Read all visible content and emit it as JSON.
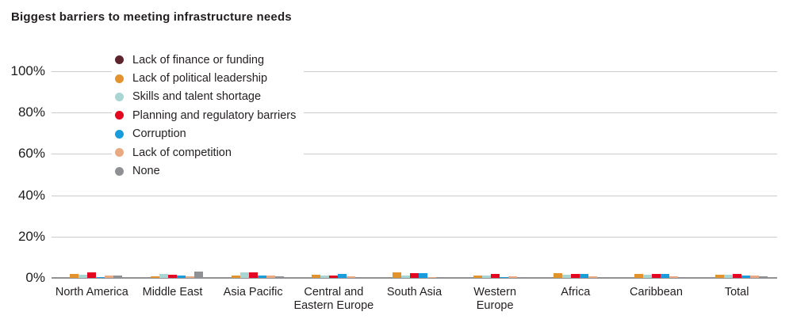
{
  "header": {
    "title": "Biggest barriers to meeting infrastructure needs"
  },
  "colors": {
    "lack_of_finance": "#5e242c",
    "political_leadership": "#e2932e",
    "skills_shortage": "#a9d5d2",
    "planning_regulatory": "#e40520",
    "corruption": "#199cdb",
    "lack_of_competition": "#eaa981",
    "none": "#8e9093",
    "gridline": "#cbcbcb",
    "baseline": "#8f9192",
    "text": "#231f20"
  },
  "chart_data": {
    "type": "bar",
    "title": "Biggest barriers to meeting infrastructure needs",
    "xlabel": "",
    "ylabel": "",
    "ylim": [
      0,
      100
    ],
    "grid": true,
    "legend_position": "top-left-overlay",
    "y_ticks": [
      "100%",
      "80%",
      "60%",
      "40%",
      "20%",
      "0%"
    ],
    "y_tick_values": [
      100,
      80,
      60,
      40,
      20,
      0
    ],
    "categories": [
      "North America",
      "Middle East",
      "Asia Pacific",
      "Central and\nEastern Europe",
      "South Asia",
      "Western\nEurope",
      "Africa",
      "Caribbean",
      "Total"
    ],
    "series": [
      {
        "name": "Lack of finance or funding",
        "color": "#5e242c",
        "values": [
          0,
          0,
          0,
          0,
          0,
          0,
          0,
          0,
          0
        ]
      },
      {
        "name": "Lack of political leadership",
        "color": "#e2932e",
        "values": [
          2.0,
          0.8,
          1.0,
          1.5,
          2.5,
          1.2,
          2.2,
          1.8,
          1.5
        ]
      },
      {
        "name": "Skills and talent shortage",
        "color": "#a9d5d2",
        "values": [
          1.5,
          2.0,
          2.5,
          1.2,
          1.0,
          1.2,
          1.5,
          1.5,
          1.5
        ]
      },
      {
        "name": "Planning and regulatory barriers",
        "color": "#e40520",
        "values": [
          2.5,
          1.5,
          2.5,
          1.2,
          2.2,
          2.0,
          2.0,
          2.0,
          2.0
        ]
      },
      {
        "name": "Corruption",
        "color": "#199cdb",
        "values": [
          0.5,
          1.0,
          1.0,
          1.8,
          2.2,
          0.5,
          2.0,
          1.8,
          1.0
        ]
      },
      {
        "name": "Lack of competition",
        "color": "#eaa981",
        "values": [
          1.0,
          0.8,
          1.3,
          0.8,
          0.5,
          0.8,
          0.7,
          0.8,
          1.0
        ]
      },
      {
        "name": "None",
        "color": "#8e9093",
        "values": [
          1.0,
          3.0,
          0.8,
          0.3,
          0.2,
          0.5,
          0.1,
          0.2,
          0.8
        ]
      }
    ]
  }
}
